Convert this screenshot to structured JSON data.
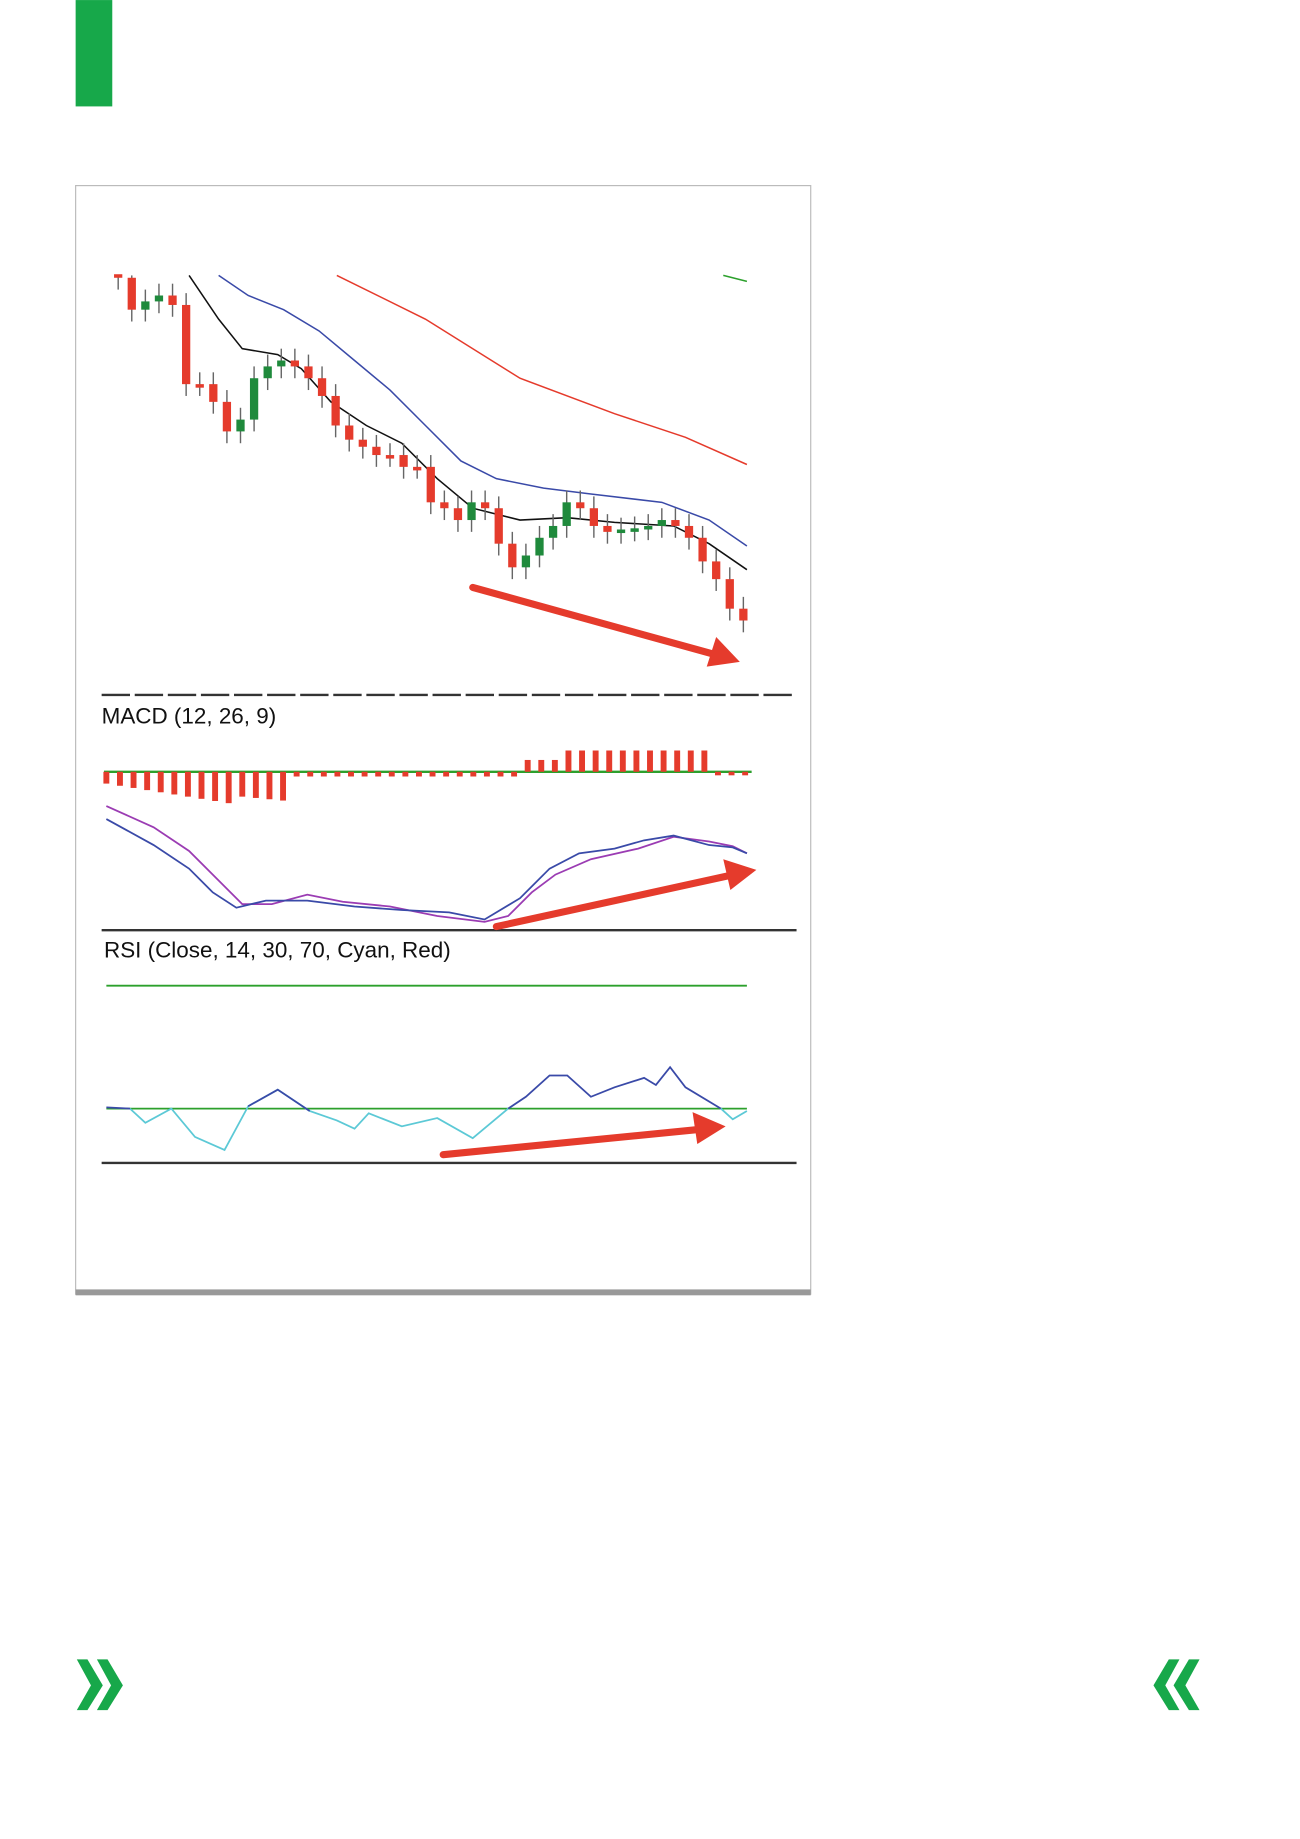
{
  "chart": {
    "macd_label": "MACD (12, 26, 9)",
    "rsi_label": "RSI (Close, 14, 30, 70, Cyan, Red)"
  }
}
